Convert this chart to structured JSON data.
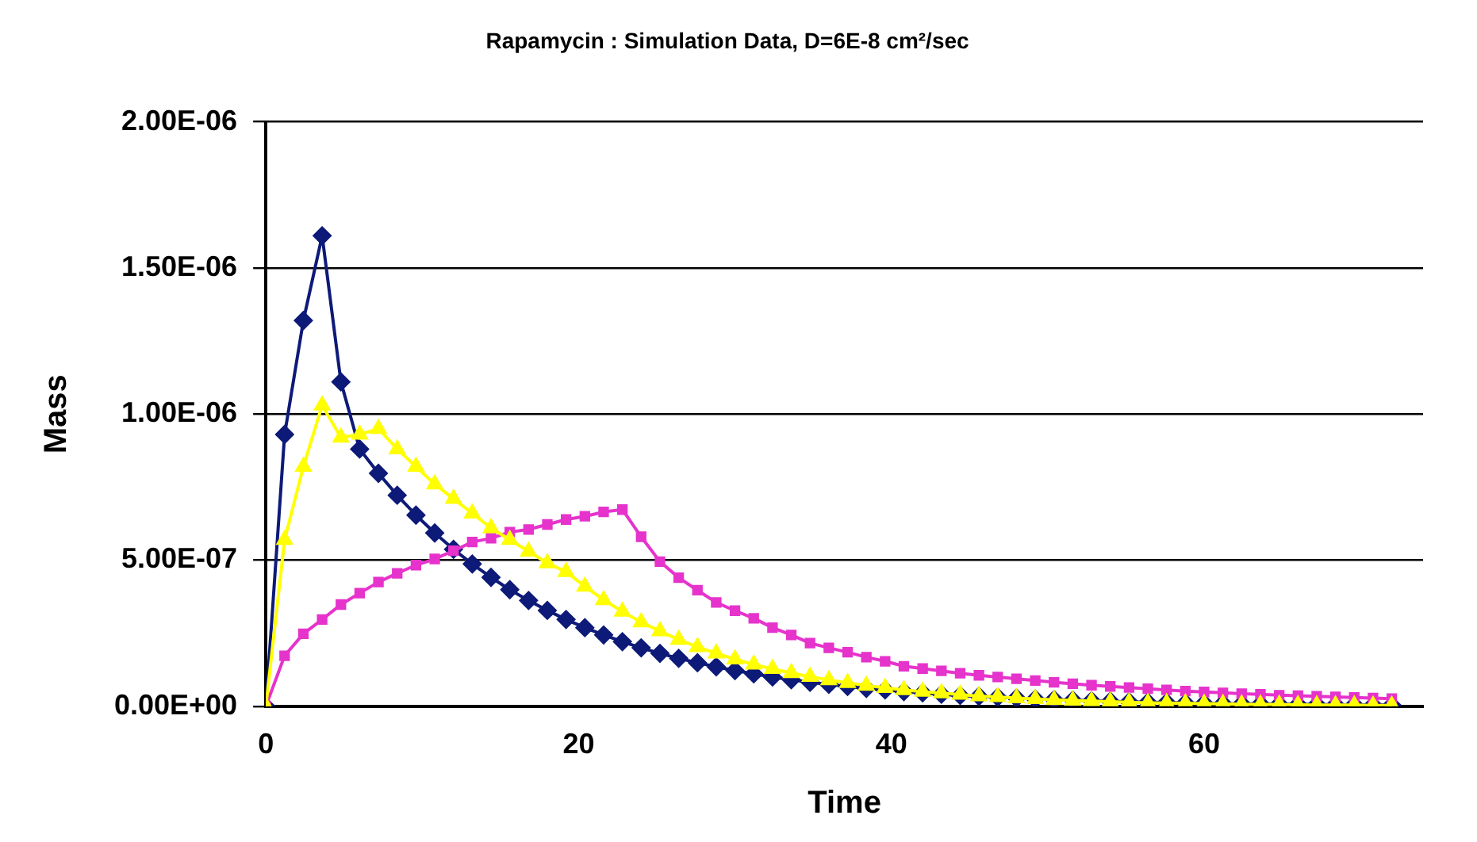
{
  "chart_data": {
    "type": "line",
    "title": "Rapamycin : Simulation Data, D=6E-8 cm²/sec",
    "xlabel": "Time",
    "ylabel": "Mass",
    "x": [
      0,
      1.2,
      2.4,
      3.6,
      4.8,
      6,
      7.2,
      8.4,
      9.6,
      10.8,
      12,
      13.2,
      14.4,
      15.6,
      16.8,
      18,
      19.2,
      20.4,
      21.6,
      22.8,
      24,
      25.2,
      26.4,
      27.6,
      28.8,
      30,
      31.2,
      32.4,
      33.6,
      34.8,
      36,
      37.2,
      38.4,
      39.6,
      40.8,
      42,
      43.2,
      44.4,
      45.6,
      46.8,
      48,
      49.2,
      50.4,
      51.6,
      52.8,
      54,
      55.2,
      56.4,
      57.6,
      58.8,
      60,
      61.2,
      62.4,
      63.6,
      64.8,
      66,
      67.2,
      68.4,
      69.6,
      70.8,
      72
    ],
    "series": [
      {
        "color": "#0d1a78",
        "marker": "diamond",
        "values": [
          0,
          9.3e-07,
          1.32e-06,
          1.61e-06,
          1.11e-06,
          8.8e-07,
          7.97e-07,
          7.22e-07,
          6.54e-07,
          5.93e-07,
          5.37e-07,
          4.87e-07,
          4.41e-07,
          3.99e-07,
          3.62e-07,
          3.28e-07,
          2.97e-07,
          2.69e-07,
          2.44e-07,
          2.21e-07,
          2e-07,
          1.81e-07,
          1.64e-07,
          1.49e-07,
          1.35e-07,
          1.22e-07,
          1.11e-07,
          1e-07,
          9.1e-08,
          8.2e-08,
          7.5e-08,
          6.8e-08,
          6.1e-08,
          5.6e-08,
          5e-08,
          4.6e-08,
          4.1e-08,
          3.7e-08,
          3.4e-08,
          3.1e-08,
          2.8e-08,
          2.5e-08,
          2.3e-08,
          2.1e-08,
          1.9e-08,
          1.7e-08,
          1.5e-08,
          1.4e-08,
          1.3e-08,
          1.1e-08,
          1e-08,
          9e-09,
          8e-09,
          8e-09,
          7e-09,
          6e-09,
          6e-09,
          5e-09,
          5e-09,
          4e-09,
          4e-09
        ]
      },
      {
        "color": "#e633cc",
        "marker": "square",
        "values": [
          0,
          1.73e-07,
          2.48e-07,
          2.97e-07,
          3.48e-07,
          3.87e-07,
          4.25e-07,
          4.55e-07,
          4.83e-07,
          5.04e-07,
          5.32e-07,
          5.62e-07,
          5.75e-07,
          5.96e-07,
          6.05e-07,
          6.22e-07,
          6.39e-07,
          6.5e-07,
          6.65e-07,
          6.73e-07,
          5.8e-07,
          4.95e-07,
          4.4e-07,
          3.97e-07,
          3.55e-07,
          3.27e-07,
          3.01e-07,
          2.69e-07,
          2.44e-07,
          2.16e-07,
          2e-07,
          1.85e-07,
          1.68e-07,
          1.54e-07,
          1.37e-07,
          1.29e-07,
          1.21e-07,
          1.13e-07,
          1.06e-07,
          1e-07,
          9.4e-08,
          8.8e-08,
          8.2e-08,
          7.7e-08,
          7.2e-08,
          6.8e-08,
          6.4e-08,
          6e-08,
          5.6e-08,
          5.2e-08,
          4.9e-08,
          4.6e-08,
          4.3e-08,
          4.1e-08,
          3.8e-08,
          3.6e-08,
          3.4e-08,
          3.2e-08,
          3e-08,
          2.8e-08,
          2.6e-08
        ]
      },
      {
        "color": "#ffff00",
        "marker": "triangle",
        "values": [
          0,
          5.7e-07,
          8.2e-07,
          1.03e-06,
          9.2e-07,
          9.3e-07,
          9.5e-07,
          8.8e-07,
          8.2e-07,
          7.6e-07,
          7.1e-07,
          6.6e-07,
          6.1e-07,
          5.7e-07,
          5.3e-07,
          4.9e-07,
          4.6e-07,
          4.1e-07,
          3.64e-07,
          3.24e-07,
          2.88e-07,
          2.57e-07,
          2.28e-07,
          2.03e-07,
          1.81e-07,
          1.61e-07,
          1.43e-07,
          1.28e-07,
          1.14e-07,
          1.01e-07,
          9e-08,
          8e-08,
          7.1e-08,
          6.3e-08,
          5.6e-08,
          5e-08,
          4.5e-08,
          4e-08,
          3.5e-08,
          3.2e-08,
          2.8e-08,
          2.5e-08,
          2.2e-08,
          2e-08,
          1.8e-08,
          1.6e-08,
          1.4e-08,
          1.2e-08,
          1.1e-08,
          1e-08,
          9e-09,
          8e-09,
          7e-09,
          6e-09,
          6e-09,
          5e-09,
          4e-09,
          4e-09,
          4e-09,
          3e-09,
          3e-09
        ]
      }
    ],
    "xlim": [
      0,
      74
    ],
    "xticks": [
      0,
      20,
      40,
      60
    ],
    "ylim": [
      0,
      2e-06
    ],
    "yticks": [
      {
        "value": 0,
        "label": "0.00E+00"
      },
      {
        "value": 5e-07,
        "label": "5.00E-07"
      },
      {
        "value": 1e-06,
        "label": "1.00E-06"
      },
      {
        "value": 1.5e-06,
        "label": "1.50E-06"
      },
      {
        "value": 2e-06,
        "label": "2.00E-06"
      }
    ],
    "grid": "y",
    "legend": false,
    "line_style": "solid"
  }
}
